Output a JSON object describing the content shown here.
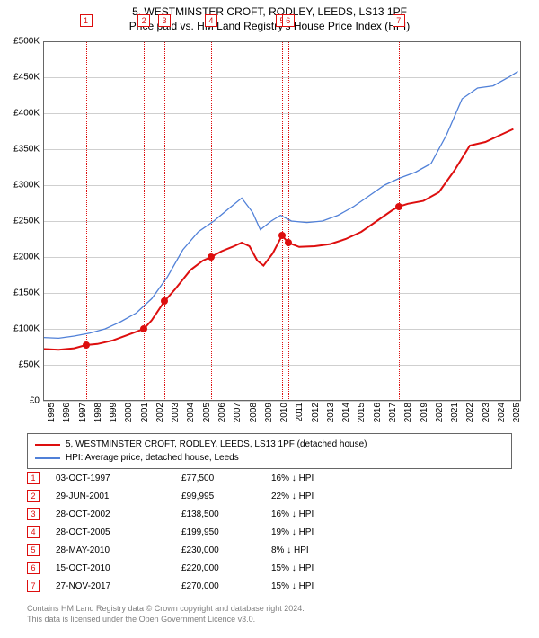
{
  "title": {
    "line1": "5, WESTMINSTER CROFT, RODLEY, LEEDS, LS13 1PF",
    "line2": "Price paid vs. HM Land Registry's House Price Index (HPI)"
  },
  "chart": {
    "type": "line",
    "x_range": [
      1995,
      2025.8
    ],
    "y_range": [
      0,
      500000
    ],
    "y_ticks": [
      0,
      50000,
      100000,
      150000,
      200000,
      250000,
      300000,
      350000,
      400000,
      450000,
      500000
    ],
    "y_tick_labels": [
      "£0",
      "£50K",
      "£100K",
      "£150K",
      "£200K",
      "£250K",
      "£300K",
      "£350K",
      "£400K",
      "£450K",
      "£500K"
    ],
    "x_ticks": [
      1995,
      1996,
      1997,
      1998,
      1999,
      2000,
      2001,
      2002,
      2003,
      2004,
      2005,
      2006,
      2007,
      2008,
      2009,
      2010,
      2011,
      2012,
      2013,
      2014,
      2015,
      2016,
      2017,
      2018,
      2019,
      2020,
      2021,
      2022,
      2023,
      2024,
      2025
    ],
    "grid_color": "#cfcfcf",
    "marker_line_color": "#dd0e0e",
    "series": {
      "prop": {
        "label": "5, WESTMINSTER CROFT, RODLEY, LEEDS, LS13 1PF (detached house)",
        "color": "#dd0e0e",
        "width": 2,
        "points": [
          [
            1995.0,
            72000
          ],
          [
            1996.0,
            71000
          ],
          [
            1997.0,
            73000
          ],
          [
            1997.75,
            77500
          ],
          [
            1998.5,
            79000
          ],
          [
            1999.5,
            84000
          ],
          [
            2000.5,
            92000
          ],
          [
            2001.49,
            99995
          ],
          [
            2002.0,
            112000
          ],
          [
            2002.82,
            138500
          ],
          [
            2003.5,
            155000
          ],
          [
            2004.5,
            182000
          ],
          [
            2005.3,
            195000
          ],
          [
            2005.82,
            199950
          ],
          [
            2006.5,
            208000
          ],
          [
            2007.3,
            215000
          ],
          [
            2007.8,
            220000
          ],
          [
            2008.3,
            215000
          ],
          [
            2008.8,
            195000
          ],
          [
            2009.2,
            188000
          ],
          [
            2009.8,
            205000
          ],
          [
            2010.4,
            230000
          ],
          [
            2010.79,
            220000
          ],
          [
            2011.5,
            214000
          ],
          [
            2012.5,
            215000
          ],
          [
            2013.5,
            218000
          ],
          [
            2014.5,
            225000
          ],
          [
            2015.5,
            235000
          ],
          [
            2016.5,
            250000
          ],
          [
            2017.5,
            265000
          ],
          [
            2017.91,
            270000
          ],
          [
            2018.5,
            274000
          ],
          [
            2019.5,
            278000
          ],
          [
            2020.5,
            290000
          ],
          [
            2021.5,
            320000
          ],
          [
            2022.5,
            355000
          ],
          [
            2023.5,
            360000
          ],
          [
            2024.5,
            370000
          ],
          [
            2025.3,
            378000
          ]
        ]
      },
      "hpi": {
        "label": "HPI: Average price, detached house, Leeds",
        "color": "#5080d8",
        "width": 1.3,
        "points": [
          [
            1995.0,
            88000
          ],
          [
            1996.0,
            87000
          ],
          [
            1997.0,
            90000
          ],
          [
            1998.0,
            94000
          ],
          [
            1999.0,
            100000
          ],
          [
            2000.0,
            110000
          ],
          [
            2001.0,
            122000
          ],
          [
            2002.0,
            142000
          ],
          [
            2003.0,
            172000
          ],
          [
            2004.0,
            210000
          ],
          [
            2005.0,
            235000
          ],
          [
            2006.0,
            250000
          ],
          [
            2007.0,
            268000
          ],
          [
            2007.8,
            282000
          ],
          [
            2008.5,
            262000
          ],
          [
            2009.0,
            238000
          ],
          [
            2009.7,
            250000
          ],
          [
            2010.3,
            258000
          ],
          [
            2011.0,
            250000
          ],
          [
            2012.0,
            248000
          ],
          [
            2013.0,
            250000
          ],
          [
            2014.0,
            258000
          ],
          [
            2015.0,
            270000
          ],
          [
            2016.0,
            285000
          ],
          [
            2017.0,
            300000
          ],
          [
            2018.0,
            310000
          ],
          [
            2019.0,
            318000
          ],
          [
            2020.0,
            330000
          ],
          [
            2021.0,
            370000
          ],
          [
            2022.0,
            420000
          ],
          [
            2023.0,
            435000
          ],
          [
            2024.0,
            438000
          ],
          [
            2025.0,
            450000
          ],
          [
            2025.6,
            458000
          ]
        ]
      }
    },
    "sale_markers": [
      {
        "n": "1",
        "x": 1997.75,
        "y": 77500
      },
      {
        "n": "2",
        "x": 2001.49,
        "y": 99995
      },
      {
        "n": "3",
        "x": 2002.82,
        "y": 138500
      },
      {
        "n": "4",
        "x": 2005.82,
        "y": 199950
      },
      {
        "n": "5",
        "x": 2010.4,
        "y": 230000
      },
      {
        "n": "6",
        "x": 2010.79,
        "y": 220000
      },
      {
        "n": "7",
        "x": 2017.91,
        "y": 270000
      }
    ]
  },
  "legend": {
    "rows": [
      {
        "color": "#dd0e0e",
        "label": "5, WESTMINSTER CROFT, RODLEY, LEEDS, LS13 1PF (detached house)"
      },
      {
        "color": "#5080d8",
        "label": "HPI: Average price, detached house, Leeds"
      }
    ]
  },
  "transactions": [
    {
      "n": "1",
      "date": "03-OCT-1997",
      "price": "£77,500",
      "diff": "16% ↓ HPI"
    },
    {
      "n": "2",
      "date": "29-JUN-2001",
      "price": "£99,995",
      "diff": "22% ↓ HPI"
    },
    {
      "n": "3",
      "date": "28-OCT-2002",
      "price": "£138,500",
      "diff": "16% ↓ HPI"
    },
    {
      "n": "4",
      "date": "28-OCT-2005",
      "price": "£199,950",
      "diff": "19% ↓ HPI"
    },
    {
      "n": "5",
      "date": "28-MAY-2010",
      "price": "£230,000",
      "diff": "8% ↓ HPI"
    },
    {
      "n": "6",
      "date": "15-OCT-2010",
      "price": "£220,000",
      "diff": "15% ↓ HPI"
    },
    {
      "n": "7",
      "date": "27-NOV-2017",
      "price": "£270,000",
      "diff": "15% ↓ HPI"
    }
  ],
  "footnote": {
    "line1": "Contains HM Land Registry data © Crown copyright and database right 2024.",
    "line2": "This data is licensed under the Open Government Licence v3.0."
  }
}
